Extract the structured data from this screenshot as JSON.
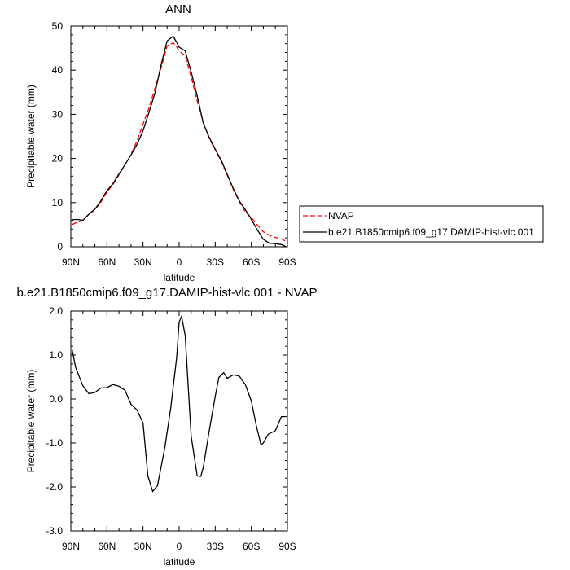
{
  "chart_data": [
    {
      "type": "line",
      "title": "ANN",
      "xlabel": "latitude",
      "ylabel": "Precipitable water (mm)",
      "xlim": [
        90,
        -90
      ],
      "ylim": [
        0,
        50
      ],
      "x_ticks": [
        90,
        60,
        30,
        0,
        -30,
        -60,
        -90
      ],
      "x_tick_labels": [
        "90N",
        "60N",
        "30N",
        "0",
        "30S",
        "60S",
        "90S"
      ],
      "y_ticks": [
        0,
        10,
        20,
        30,
        40,
        50
      ],
      "y_tick_labels": [
        "0",
        "10",
        "20",
        "30",
        "40",
        "50"
      ],
      "grid": false,
      "legend_position": "right",
      "series": [
        {
          "name": "NVAP",
          "color": "#ff0000",
          "dash": true,
          "x": [
            89,
            85,
            80,
            75,
            70,
            65,
            60,
            55,
            50,
            45,
            40,
            35,
            30,
            25,
            20,
            15,
            10,
            5,
            2,
            0,
            -5,
            -10,
            -15,
            -20,
            -25,
            -30,
            -35,
            -40,
            -45,
            -50,
            -55,
            -60,
            -65,
            -70,
            -75,
            -80,
            -85,
            -89
          ],
          "y": [
            5.0,
            5.5,
            6.0,
            7.3,
            8.4,
            10.1,
            12.4,
            14.1,
            16.3,
            18.5,
            20.9,
            24.0,
            27.8,
            31.5,
            36.0,
            40.5,
            45.5,
            46.2,
            45.3,
            44.3,
            43.3,
            38.5,
            33.0,
            28.3,
            24.5,
            22.0,
            19.3,
            16.2,
            13.0,
            10.2,
            7.9,
            6.6,
            4.9,
            3.4,
            2.6,
            2.1,
            1.8,
            1.2
          ]
        },
        {
          "name": "b.e21.B1850cmip6.f09_g17.DAMIP-hist-vlc.001",
          "color": "#000000",
          "dash": false,
          "x": [
            89,
            85,
            80,
            75,
            70,
            65,
            60,
            55,
            50,
            45,
            40,
            35,
            30,
            25,
            20,
            15,
            10,
            5,
            2,
            0,
            -5,
            -10,
            -15,
            -20,
            -25,
            -30,
            -35,
            -40,
            -45,
            -50,
            -55,
            -60,
            -65,
            -70,
            -75,
            -80,
            -85,
            -89
          ],
          "y": [
            6.1,
            6.2,
            6.0,
            7.4,
            8.5,
            10.4,
            12.7,
            14.3,
            16.5,
            18.6,
            20.8,
            23.2,
            26.3,
            30.5,
            34.9,
            41.2,
            46.6,
            47.7,
            46.3,
            45.2,
            44.4,
            39.6,
            34.2,
            28.0,
            24.8,
            22.1,
            19.6,
            16.4,
            13.2,
            10.4,
            8.4,
            6.2,
            3.8,
            1.7,
            0.8,
            0.7,
            0.5,
            0.0
          ]
        }
      ]
    },
    {
      "type": "line",
      "title": "b.e21.B1850cmip6.f09_g17.DAMIP-hist-vlc.001 - NVAP",
      "xlabel": "latitude",
      "ylabel": "Precipitable water (mm)",
      "xlim": [
        90,
        -90
      ],
      "ylim": [
        -3.0,
        2.0
      ],
      "x_ticks": [
        90,
        60,
        30,
        0,
        -30,
        -60,
        -90
      ],
      "x_tick_labels": [
        "90N",
        "60N",
        "30N",
        "0",
        "30S",
        "60S",
        "90S"
      ],
      "y_ticks": [
        2.0,
        1.0,
        0.0,
        -1.0,
        -2.0,
        -3.0
      ],
      "y_tick_labels": [
        "2.0",
        "1.0",
        "0.0",
        "-1.0",
        "-2.0",
        "-3.0"
      ],
      "grid": false,
      "series": [
        {
          "color": "#000000",
          "dash": false,
          "x": [
            89,
            86,
            80,
            75,
            70,
            65,
            60,
            55,
            50,
            45,
            40,
            35,
            30,
            26,
            22,
            18,
            12,
            7,
            2,
            0,
            -2,
            -5,
            -10,
            -15,
            -18,
            -20,
            -25,
            -30,
            -33,
            -37,
            -40,
            -45,
            -50,
            -55,
            -60,
            -64,
            -68,
            -70,
            -74,
            -80,
            -85,
            -88
          ],
          "y": [
            1.13,
            0.72,
            0.3,
            0.12,
            0.15,
            0.25,
            0.26,
            0.33,
            0.29,
            0.2,
            -0.12,
            -0.25,
            -0.55,
            -1.75,
            -2.1,
            -1.97,
            -1.12,
            -0.2,
            0.95,
            1.75,
            1.88,
            1.45,
            -0.85,
            -1.75,
            -1.76,
            -1.56,
            -0.73,
            0.06,
            0.49,
            0.6,
            0.47,
            0.55,
            0.52,
            0.33,
            -0.05,
            -0.59,
            -1.04,
            -1.0,
            -0.8,
            -0.72,
            -0.4,
            -0.4
          ]
        }
      ]
    }
  ]
}
